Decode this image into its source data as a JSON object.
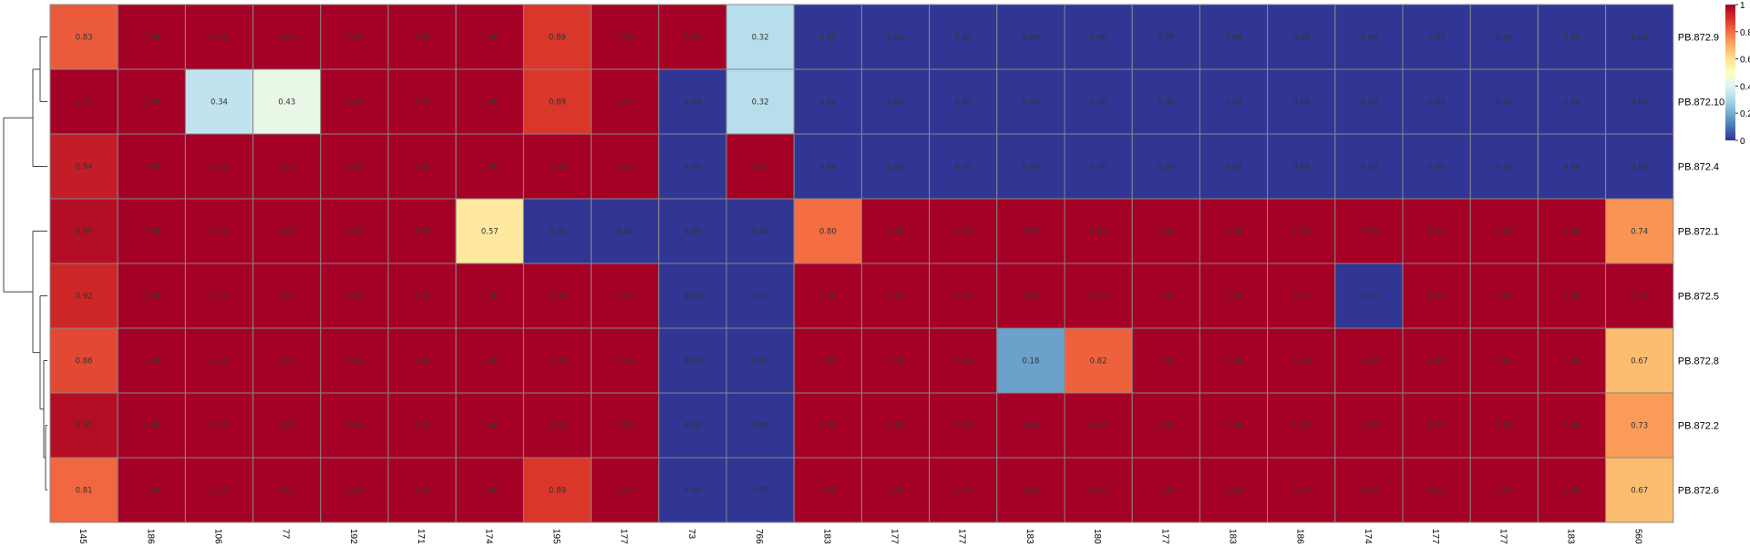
{
  "chart_data": {
    "type": "heatmap",
    "title": "",
    "xlabel": "",
    "ylabel": "",
    "rows": [
      "PB.872.9",
      "PB.872.10",
      "PB.872.4",
      "PB.872.1",
      "PB.872.5",
      "PB.872.8",
      "PB.872.2",
      "PB.872.6"
    ],
    "columns": [
      "145",
      "186",
      "106",
      "77",
      "192",
      "171",
      "174",
      "195",
      "177",
      "73",
      "766",
      "183",
      "177",
      "177",
      "183",
      "180",
      "177",
      "183",
      "186",
      "174",
      "177",
      "177",
      "183",
      "560"
    ],
    "values": [
      [
        0.83,
        1.0,
        1.0,
        1.0,
        1.0,
        1.0,
        1.0,
        0.89,
        1.0,
        1.0,
        0.32,
        0.0,
        0.0,
        0.0,
        0.0,
        0.0,
        0.0,
        0.0,
        0.0,
        0.0,
        0.0,
        0.0,
        0.0,
        0.0
      ],
      [
        1.0,
        1.0,
        0.34,
        0.43,
        1.0,
        1.0,
        1.0,
        0.89,
        1.0,
        0.0,
        0.32,
        0.0,
        0.0,
        0.0,
        0.0,
        0.0,
        0.0,
        0.0,
        0.0,
        0.0,
        0.0,
        0.0,
        0.0,
        0.0
      ],
      [
        0.94,
        1.0,
        1.0,
        1.0,
        1.0,
        1.0,
        1.0,
        1.0,
        1.0,
        0.0,
        1.0,
        0.0,
        0.0,
        0.0,
        0.0,
        0.0,
        0.0,
        0.0,
        0.0,
        0.0,
        0.0,
        0.0,
        0.0,
        0.0
      ],
      [
        0.97,
        1.0,
        1.0,
        1.0,
        1.0,
        1.0,
        0.57,
        0.0,
        0.0,
        0.0,
        0.0,
        0.8,
        1.0,
        1.0,
        1.0,
        1.0,
        1.0,
        1.0,
        1.0,
        1.0,
        1.0,
        1.0,
        1.0,
        0.74
      ],
      [
        0.92,
        1.0,
        1.0,
        1.0,
        1.0,
        1.0,
        1.0,
        1.0,
        1.0,
        0.0,
        0.0,
        1.0,
        1.0,
        1.0,
        1.0,
        1.0,
        1.0,
        1.0,
        1.0,
        0.0,
        1.0,
        1.0,
        1.0,
        1.0
      ],
      [
        0.86,
        1.0,
        1.0,
        1.0,
        1.0,
        1.0,
        1.0,
        1.0,
        1.0,
        0.0,
        0.0,
        1.0,
        1.0,
        1.0,
        0.18,
        0.82,
        1.0,
        1.0,
        1.0,
        1.0,
        1.0,
        1.0,
        1.0,
        0.67
      ],
      [
        0.97,
        1.0,
        1.0,
        1.0,
        1.0,
        1.0,
        1.0,
        1.0,
        1.0,
        0.0,
        0.0,
        1.0,
        1.0,
        1.0,
        1.0,
        1.0,
        1.0,
        1.0,
        1.0,
        1.0,
        1.0,
        1.0,
        1.0,
        0.73
      ],
      [
        0.81,
        1.0,
        1.0,
        1.0,
        1.0,
        1.0,
        1.0,
        0.89,
        1.0,
        0.0,
        0.0,
        1.0,
        1.0,
        1.0,
        1.0,
        1.0,
        1.0,
        1.0,
        1.0,
        1.0,
        1.0,
        1.0,
        1.0,
        0.67
      ]
    ],
    "value_format": "2 decimals",
    "color_scale": {
      "range": [
        0,
        1
      ],
      "stops": [
        "#313695",
        "#4575B4",
        "#74ADD1",
        "#ABD9E9",
        "#E0F3F8",
        "#FFFFBF",
        "#FEE090",
        "#FDAE61",
        "#F46D43",
        "#D73027",
        "#A50026"
      ],
      "legend_ticks": [
        0,
        0.2,
        0.4,
        0.6,
        0.8,
        1
      ],
      "legend_tick_labels": [
        "0",
        "0.2",
        "0.4",
        "0.6",
        "0.8",
        "1"
      ]
    },
    "cluster": "rows",
    "grid": true,
    "grid_color": "#888888",
    "legend_placement": "top-right"
  }
}
